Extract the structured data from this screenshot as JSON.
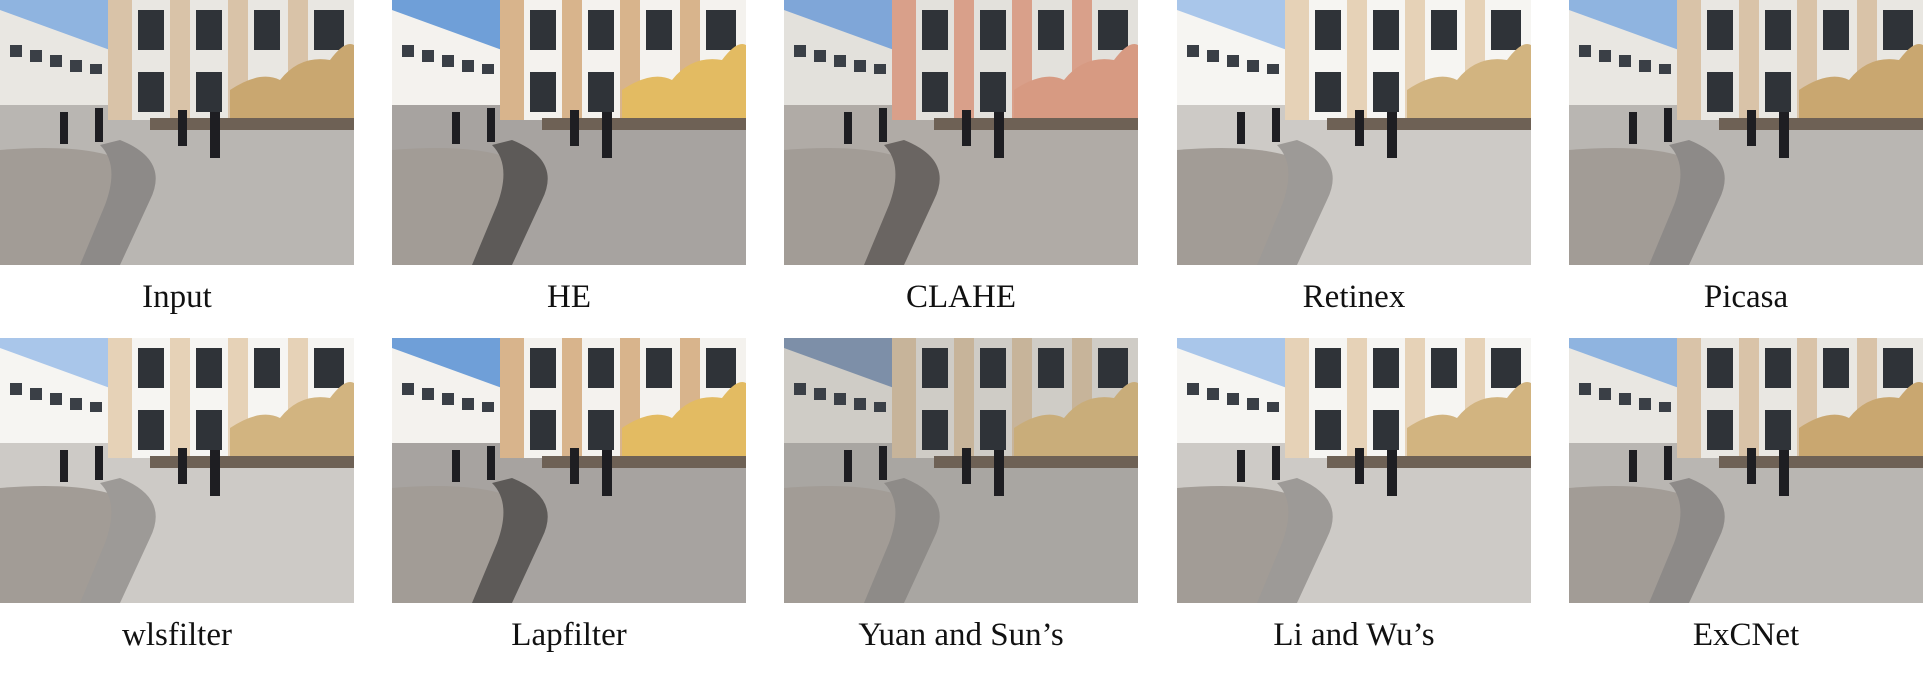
{
  "figure": {
    "panels": [
      {
        "label": "Input",
        "tone": "base"
      },
      {
        "label": "HE",
        "tone": "contrast"
      },
      {
        "label": "CLAHE",
        "tone": "clahe"
      },
      {
        "label": "Retinex",
        "tone": "bright"
      },
      {
        "label": "Picasa",
        "tone": "base"
      },
      {
        "label": "wlsfilter",
        "tone": "bright"
      },
      {
        "label": "Lapfilter",
        "tone": "contrast"
      },
      {
        "label": "Yuan and Sun’s",
        "tone": "faded"
      },
      {
        "label": "Li and Wu’s",
        "tone": "bright"
      },
      {
        "label": "ExCNet",
        "tone": "base"
      }
    ]
  }
}
